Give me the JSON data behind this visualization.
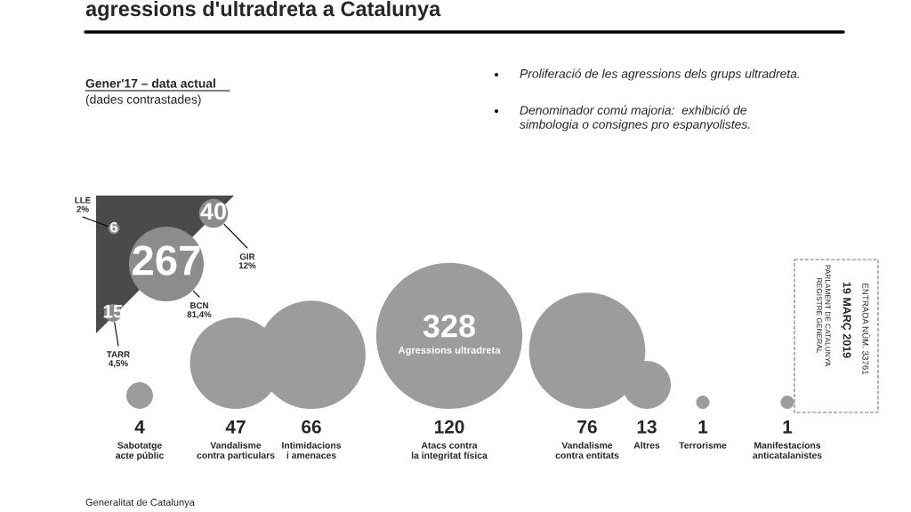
{
  "chart_data": [
    {
      "type": "other",
      "title": "agressions d'ultradreta a Catalunya",
      "subtitle": "Gener'17 – data actual",
      "categories": [
        "Sabotatge\nacte públic",
        "Vandalisme\ncontra particulars",
        "Intimidacions\ni amenaces",
        "Atacs contra\nla integritat física",
        "Vandalisme\ncontra entitats",
        "Altres",
        "Terrorisme",
        "Manifestacions\nanticatalanistes"
      ],
      "values": [
        4,
        47,
        66,
        120,
        76,
        13,
        1,
        1
      ],
      "data_labels": true,
      "color": "#9c9c9c",
      "annotations": [
        "(dades contrastades)",
        "Proliferació de les agressions dels grups ultradreta.",
        "Denominador comú majoria:  exhibició de\nsimbologia o consignes pro espanyolistes.",
        "328",
        "Agressions ultradreta",
        "Generalitat de Catalunya",
        "PARLAMENT DE CATALUNYA\nREGISTRE GENERAL",
        "19 MARÇ 2019",
        "ENTRADA NÚM. 33761"
      ]
    },
    {
      "type": "other",
      "categories": [
        "LLE",
        "GIR",
        "BCN",
        "TARR"
      ],
      "values": [
        6,
        40,
        267,
        15
      ],
      "data_labels": true,
      "color": "#8c8c8c",
      "annotations": [
        "2%",
        "12%",
        "81,4%",
        "4,5%"
      ]
    }
  ]
}
